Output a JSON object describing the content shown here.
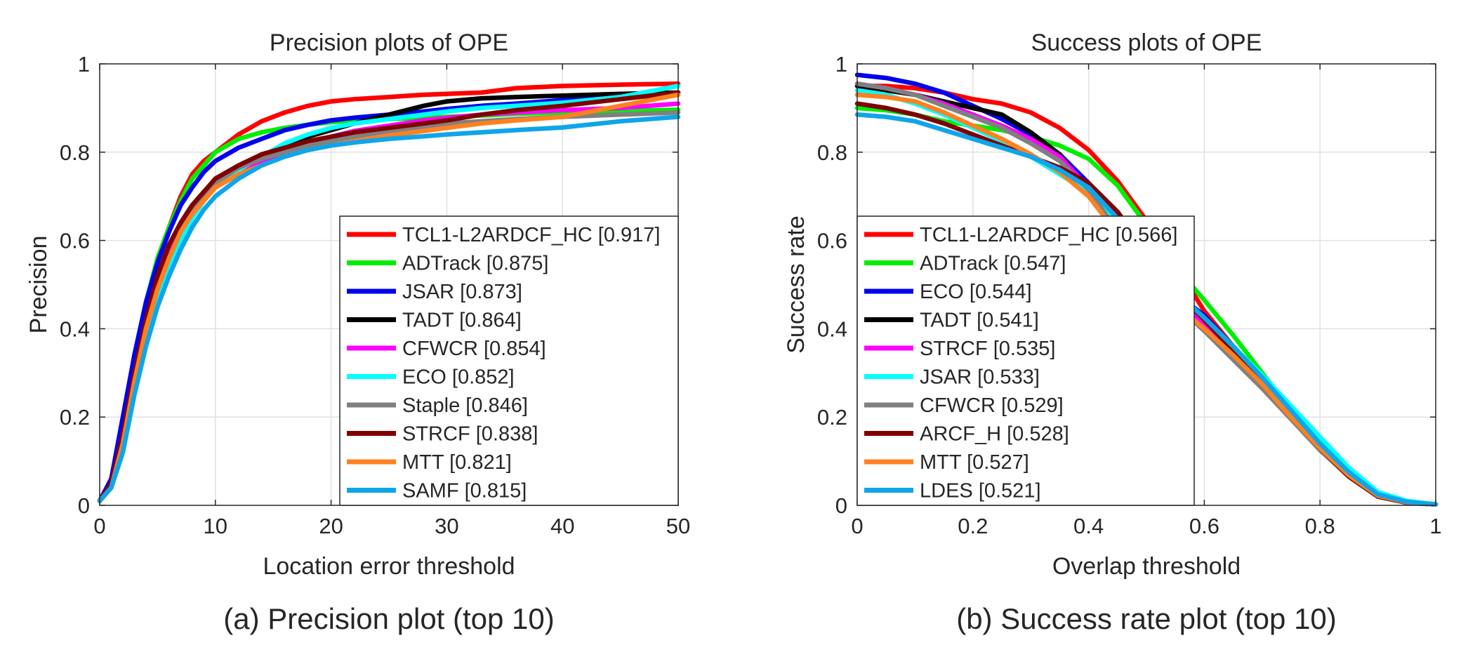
{
  "chart_data": [
    {
      "type": "line",
      "title": "Precision plots of OPE",
      "xlabel": "Location error threshold",
      "ylabel": "Precision",
      "caption": "(a) Precision plot (top 10)",
      "xlim": [
        0,
        50
      ],
      "ylim": [
        0,
        1
      ],
      "xticks": [
        "0",
        "10",
        "20",
        "30",
        "40",
        "50"
      ],
      "yticks": [
        "0",
        "0.2",
        "0.4",
        "0.6",
        "0.8",
        "1"
      ],
      "grid": true,
      "legend_position": "lower-right",
      "x": [
        0,
        1,
        2,
        3,
        4,
        5,
        6,
        7,
        8,
        9,
        10,
        12,
        14,
        16,
        18,
        20,
        22,
        25,
        28,
        30,
        33,
        36,
        40,
        45,
        50
      ],
      "series": [
        {
          "name": "TCL1-L2ARDCF_HC [0.917]",
          "color": "#ff0000",
          "values": [
            0.01,
            0.06,
            0.18,
            0.33,
            0.45,
            0.55,
            0.63,
            0.7,
            0.75,
            0.78,
            0.8,
            0.84,
            0.87,
            0.89,
            0.905,
            0.915,
            0.92,
            0.925,
            0.93,
            0.932,
            0.935,
            0.945,
            0.95,
            0.953,
            0.955
          ]
        },
        {
          "name": "ADTrack [0.875]",
          "color": "#00ee00",
          "values": [
            0.01,
            0.05,
            0.18,
            0.34,
            0.46,
            0.56,
            0.63,
            0.69,
            0.74,
            0.77,
            0.8,
            0.83,
            0.845,
            0.855,
            0.862,
            0.868,
            0.872,
            0.875,
            0.878,
            0.88,
            0.883,
            0.887,
            0.89,
            0.893,
            0.896
          ]
        },
        {
          "name": "JSAR [0.873]",
          "color": "#0000ee",
          "values": [
            0.01,
            0.06,
            0.2,
            0.34,
            0.46,
            0.55,
            0.62,
            0.68,
            0.72,
            0.755,
            0.78,
            0.81,
            0.83,
            0.85,
            0.862,
            0.872,
            0.878,
            0.885,
            0.892,
            0.898,
            0.905,
            0.91,
            0.918,
            0.925,
            0.935
          ]
        },
        {
          "name": "TADT [0.864]",
          "color": "#000000",
          "values": [
            0.01,
            0.05,
            0.16,
            0.3,
            0.42,
            0.52,
            0.59,
            0.64,
            0.68,
            0.71,
            0.73,
            0.76,
            0.79,
            0.815,
            0.835,
            0.85,
            0.865,
            0.885,
            0.905,
            0.915,
            0.922,
            0.925,
            0.928,
            0.932,
            0.935
          ]
        },
        {
          "name": "CFWCR [0.854]",
          "color": "#ff00ff",
          "values": [
            0.01,
            0.05,
            0.16,
            0.3,
            0.42,
            0.51,
            0.58,
            0.63,
            0.67,
            0.7,
            0.72,
            0.75,
            0.78,
            0.8,
            0.82,
            0.835,
            0.848,
            0.86,
            0.872,
            0.878,
            0.885,
            0.89,
            0.895,
            0.9,
            0.91
          ]
        },
        {
          "name": "ECO [0.852]",
          "color": "#00ffff",
          "values": [
            0.01,
            0.04,
            0.14,
            0.27,
            0.38,
            0.47,
            0.54,
            0.6,
            0.65,
            0.69,
            0.72,
            0.76,
            0.79,
            0.82,
            0.84,
            0.855,
            0.865,
            0.875,
            0.885,
            0.892,
            0.9,
            0.905,
            0.912,
            0.925,
            0.95
          ]
        },
        {
          "name": "Staple [0.846]",
          "color": "#808080",
          "values": [
            0.01,
            0.04,
            0.14,
            0.28,
            0.4,
            0.49,
            0.56,
            0.62,
            0.67,
            0.7,
            0.73,
            0.765,
            0.785,
            0.8,
            0.815,
            0.825,
            0.835,
            0.848,
            0.858,
            0.865,
            0.87,
            0.875,
            0.88,
            0.885,
            0.89
          ]
        },
        {
          "name": "STRCF [0.838]",
          "color": "#7f0000",
          "values": [
            0.01,
            0.05,
            0.16,
            0.3,
            0.42,
            0.52,
            0.59,
            0.64,
            0.68,
            0.71,
            0.74,
            0.77,
            0.795,
            0.81,
            0.825,
            0.835,
            0.845,
            0.855,
            0.865,
            0.872,
            0.885,
            0.895,
            0.905,
            0.92,
            0.935
          ]
        },
        {
          "name": "MTT [0.821]",
          "color": "#ff8020",
          "values": [
            0.01,
            0.04,
            0.14,
            0.28,
            0.4,
            0.49,
            0.56,
            0.62,
            0.66,
            0.69,
            0.72,
            0.75,
            0.77,
            0.79,
            0.805,
            0.815,
            0.825,
            0.838,
            0.848,
            0.855,
            0.865,
            0.872,
            0.88,
            0.905,
            0.93
          ]
        },
        {
          "name": "SAMF [0.815]",
          "color": "#0ea5e9",
          "values": [
            0.01,
            0.04,
            0.12,
            0.25,
            0.36,
            0.45,
            0.52,
            0.58,
            0.63,
            0.67,
            0.7,
            0.74,
            0.77,
            0.79,
            0.805,
            0.815,
            0.822,
            0.83,
            0.836,
            0.84,
            0.845,
            0.85,
            0.856,
            0.87,
            0.88
          ]
        }
      ]
    },
    {
      "type": "line",
      "title": "Success plots of OPE",
      "xlabel": "Overlap threshold",
      "ylabel": "Success rate",
      "caption": "(b) Success rate plot (top 10)",
      "xlim": [
        0,
        1
      ],
      "ylim": [
        0,
        1
      ],
      "xticks": [
        "0",
        "0.2",
        "0.4",
        "0.6",
        "0.8",
        "1"
      ],
      "yticks": [
        "0",
        "0.2",
        "0.4",
        "0.6",
        "0.8",
        "1"
      ],
      "grid": true,
      "legend_position": "lower-left",
      "x": [
        0,
        0.05,
        0.1,
        0.15,
        0.2,
        0.25,
        0.3,
        0.35,
        0.4,
        0.45,
        0.5,
        0.55,
        0.6,
        0.65,
        0.7,
        0.75,
        0.8,
        0.85,
        0.9,
        0.95,
        1
      ],
      "series": [
        {
          "name": "TCL1-L2ARDCF_HC [0.566]",
          "color": "#ff0000",
          "values": [
            0.95,
            0.95,
            0.945,
            0.935,
            0.92,
            0.91,
            0.89,
            0.855,
            0.805,
            0.735,
            0.645,
            0.545,
            0.44,
            0.36,
            0.28,
            0.2,
            0.125,
            0.065,
            0.02,
            0.008,
            0.002
          ]
        },
        {
          "name": "ADTrack [0.547]",
          "color": "#00ee00",
          "values": [
            0.9,
            0.895,
            0.885,
            0.87,
            0.86,
            0.85,
            0.835,
            0.815,
            0.785,
            0.725,
            0.635,
            0.54,
            0.465,
            0.385,
            0.3,
            0.215,
            0.135,
            0.07,
            0.025,
            0.008,
            0.002
          ]
        },
        {
          "name": "ECO [0.544]",
          "color": "#0000ee",
          "values": [
            0.975,
            0.968,
            0.955,
            0.935,
            0.905,
            0.875,
            0.84,
            0.795,
            0.73,
            0.64,
            0.545,
            0.48,
            0.43,
            0.36,
            0.285,
            0.21,
            0.135,
            0.07,
            0.022,
            0.007,
            0.002
          ]
        },
        {
          "name": "TADT [0.541]",
          "color": "#000000",
          "values": [
            0.95,
            0.94,
            0.93,
            0.915,
            0.9,
            0.885,
            0.845,
            0.795,
            0.715,
            0.63,
            0.535,
            0.475,
            0.415,
            0.345,
            0.275,
            0.2,
            0.13,
            0.065,
            0.02,
            0.006,
            0.002
          ]
        },
        {
          "name": "STRCF [0.535]",
          "color": "#ff00ff",
          "values": [
            0.955,
            0.945,
            0.93,
            0.91,
            0.885,
            0.86,
            0.83,
            0.79,
            0.72,
            0.625,
            0.53,
            0.465,
            0.41,
            0.345,
            0.275,
            0.2,
            0.13,
            0.068,
            0.022,
            0.007,
            0.002
          ]
        },
        {
          "name": "JSAR [0.533]",
          "color": "#00ffff",
          "values": [
            0.94,
            0.93,
            0.91,
            0.885,
            0.855,
            0.825,
            0.79,
            0.75,
            0.71,
            0.64,
            0.55,
            0.48,
            0.425,
            0.36,
            0.295,
            0.225,
            0.155,
            0.085,
            0.03,
            0.01,
            0.002
          ]
        },
        {
          "name": "CFWCR [0.529]",
          "color": "#808080",
          "values": [
            0.955,
            0.945,
            0.93,
            0.905,
            0.88,
            0.855,
            0.82,
            0.78,
            0.715,
            0.62,
            0.52,
            0.455,
            0.395,
            0.33,
            0.265,
            0.195,
            0.125,
            0.065,
            0.02,
            0.006,
            0.002
          ]
        },
        {
          "name": "ARCF_H [0.528]",
          "color": "#7f0000",
          "values": [
            0.91,
            0.9,
            0.885,
            0.865,
            0.84,
            0.815,
            0.79,
            0.765,
            0.73,
            0.665,
            0.575,
            0.49,
            0.42,
            0.35,
            0.28,
            0.205,
            0.13,
            0.065,
            0.02,
            0.006,
            0.002
          ]
        },
        {
          "name": "MTT [0.527]",
          "color": "#ff8020",
          "values": [
            0.93,
            0.925,
            0.915,
            0.89,
            0.86,
            0.83,
            0.795,
            0.755,
            0.7,
            0.615,
            0.52,
            0.455,
            0.4,
            0.34,
            0.275,
            0.2,
            0.13,
            0.068,
            0.022,
            0.007,
            0.002
          ]
        },
        {
          "name": "LDES [0.521]",
          "color": "#0ea5e9",
          "values": [
            0.885,
            0.88,
            0.87,
            0.85,
            0.83,
            0.81,
            0.79,
            0.76,
            0.72,
            0.65,
            0.56,
            0.485,
            0.425,
            0.36,
            0.29,
            0.215,
            0.14,
            0.075,
            0.025,
            0.008,
            0.002
          ]
        }
      ]
    }
  ]
}
